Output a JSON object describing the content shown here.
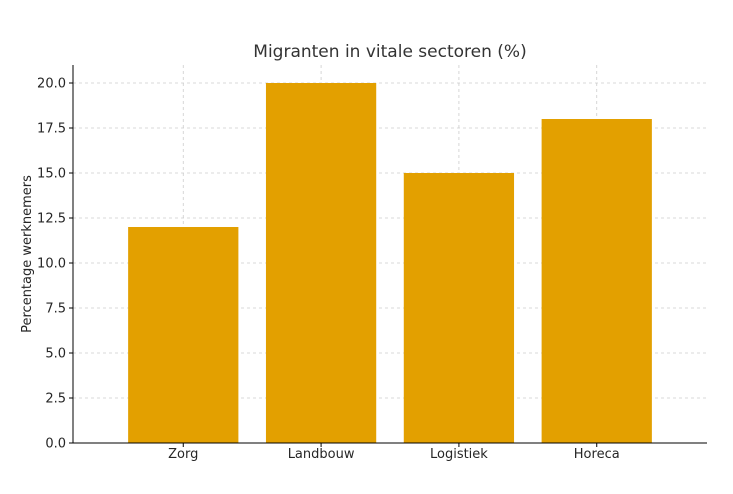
{
  "chart_data": {
    "type": "bar",
    "title": "Migranten in vitale sectoren (%)",
    "xlabel": "",
    "ylabel": "Percentage werknemers",
    "categories": [
      "Zorg",
      "Landbouw",
      "Logistiek",
      "Horeca"
    ],
    "values": [
      12,
      20,
      15,
      18
    ],
    "ylim": [
      0,
      21
    ],
    "yticks": [
      0.0,
      2.5,
      5.0,
      7.5,
      10.0,
      12.5,
      15.0,
      17.5,
      20.0
    ],
    "ytick_labels": [
      "0.0",
      "2.5",
      "5.0",
      "7.5",
      "10.0",
      "12.5",
      "15.0",
      "17.5",
      "20.0"
    ],
    "grid": true,
    "legend": "none",
    "bar_color": "#E3A000",
    "grid_color": "#cccccc",
    "axis_color": "#000000"
  }
}
